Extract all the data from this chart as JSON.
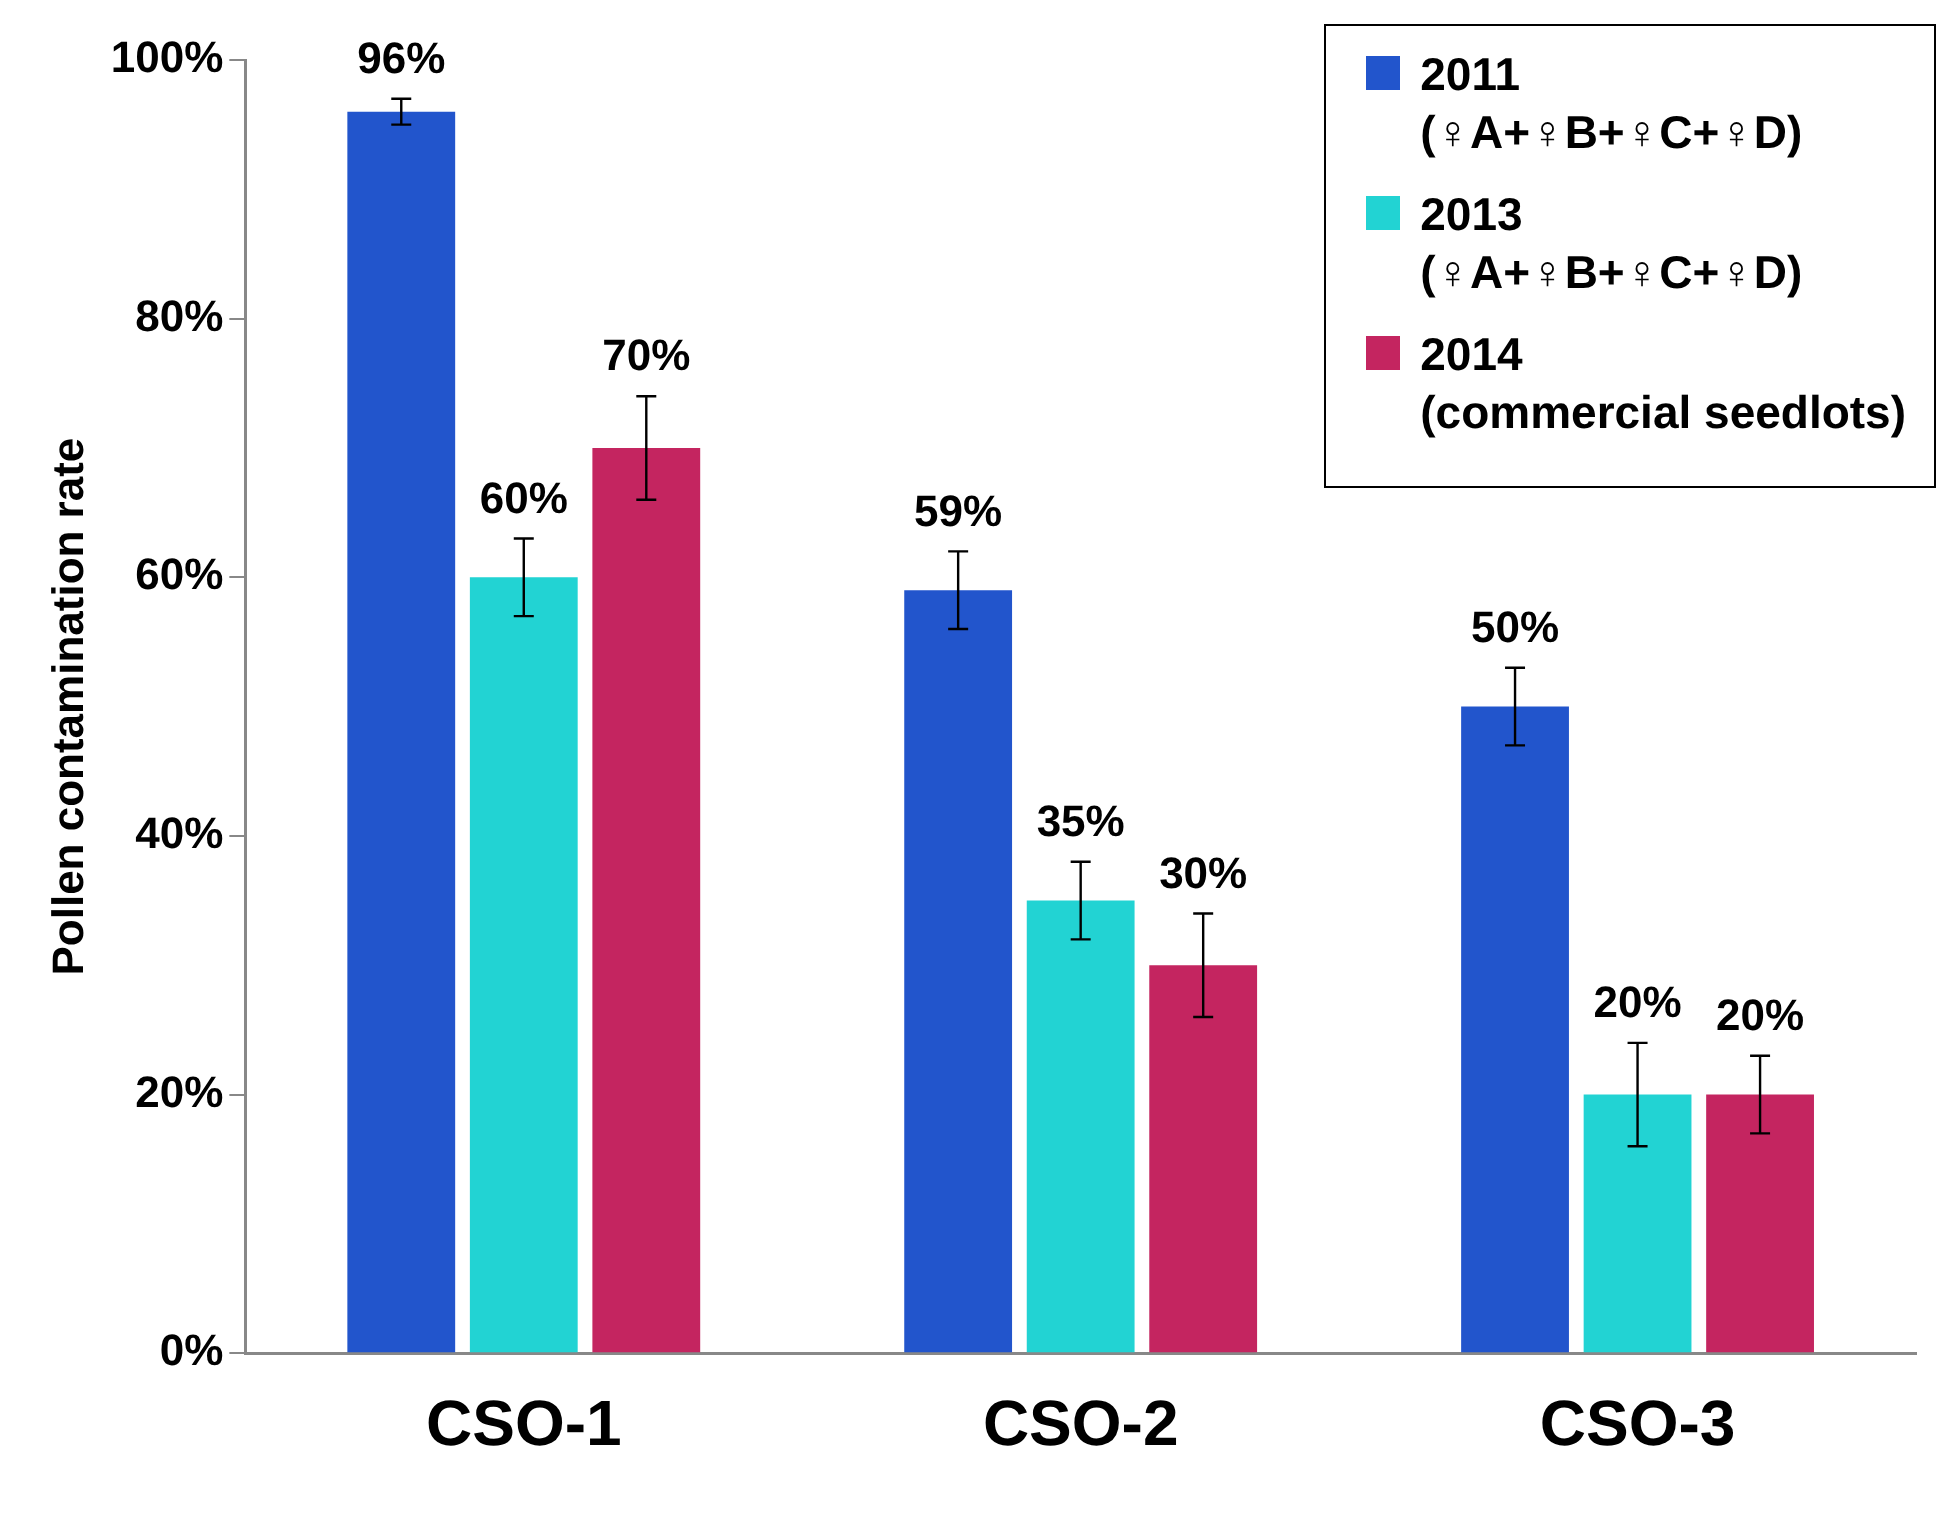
{
  "chart_data": {
    "type": "bar",
    "ylabel": "Pollen contamination rate",
    "categories": [
      "CSO-1",
      "CSO-2",
      "CSO-3"
    ],
    "series": [
      {
        "name": "2011\n(♀A+♀B+♀C+♀D)",
        "color": "#2255cc",
        "values": [
          96,
          59,
          50
        ],
        "errors": [
          1,
          3,
          3
        ]
      },
      {
        "name": "2013\n(♀A+♀B+♀C+♀D)",
        "color": "#22d3d3",
        "values": [
          60,
          35,
          20
        ],
        "errors": [
          3,
          3,
          4
        ]
      },
      {
        "name": "2014\n(commercial seedlots)",
        "color": "#c42560",
        "values": [
          70,
          30,
          20
        ],
        "errors": [
          4,
          4,
          3
        ]
      }
    ],
    "ylim": [
      0,
      100
    ],
    "yticks": [
      {
        "value": 0,
        "label": "0%"
      },
      {
        "value": 20,
        "label": "20%"
      },
      {
        "value": 40,
        "label": "40%"
      },
      {
        "value": 60,
        "label": "60%"
      },
      {
        "value": 80,
        "label": "80%"
      },
      {
        "value": 100,
        "label": "100%"
      }
    ],
    "value_labels": [
      [
        "96%",
        "59%",
        "50%"
      ],
      [
        "60%",
        "35%",
        "20%"
      ],
      [
        "70%",
        "30%",
        "20%"
      ]
    ],
    "grid": false,
    "legend": "top right"
  }
}
